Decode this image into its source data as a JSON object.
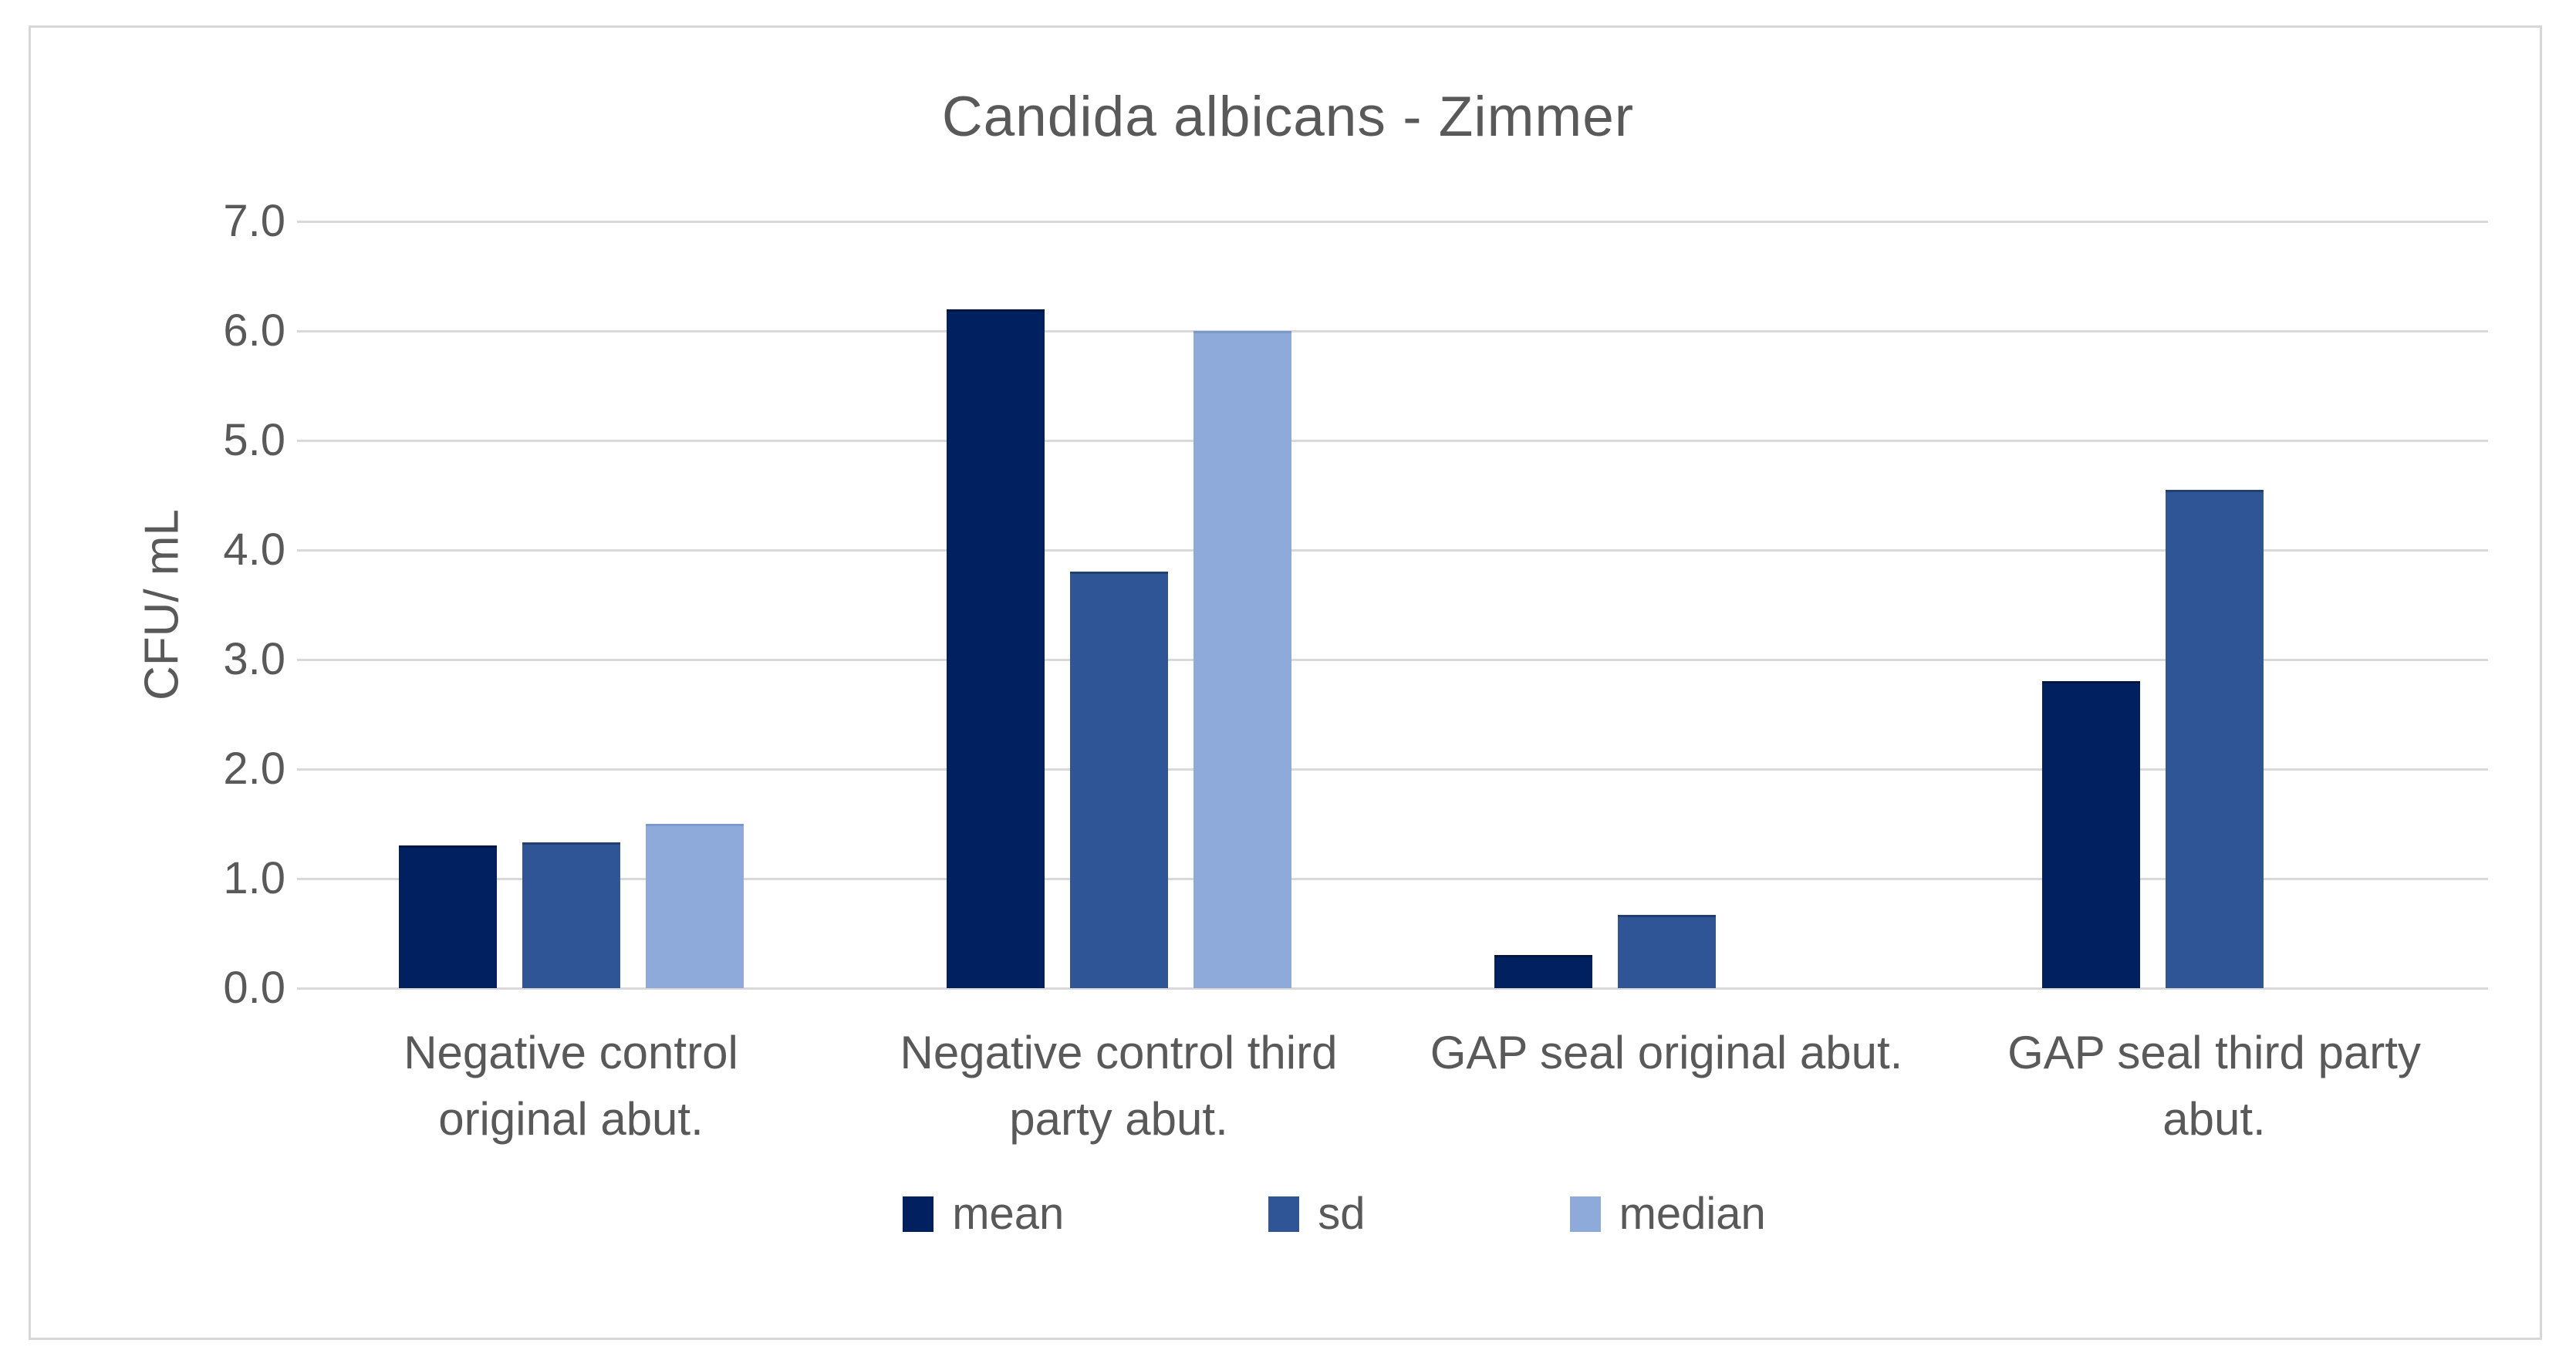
{
  "chart_data": {
    "type": "bar",
    "title": "Candida albicans - Zimmer",
    "ylabel": "CFU/ mL",
    "xlabel": "",
    "ylim": [
      0,
      7
    ],
    "ytick_values": [
      0,
      1,
      2,
      3,
      4,
      5,
      6,
      7
    ],
    "ytick_labels": [
      "0.0",
      "1.0",
      "2.0",
      "3.0",
      "4.0",
      "5.0",
      "6.0",
      "7.0"
    ],
    "grid": true,
    "legend_position": "bottom",
    "categories": [
      "Negative control\noriginal abut.",
      "Negative control third\nparty abut.",
      "GAP seal original abut.",
      "GAP seal third party\nabut."
    ],
    "series": [
      {
        "name": "mean",
        "color": "#002060",
        "edge_color": "#001642",
        "values": [
          1.3,
          6.2,
          0.3,
          2.8
        ]
      },
      {
        "name": "sd",
        "color": "#2F5596",
        "edge_color": "#223F70",
        "values": [
          1.33,
          3.8,
          0.67,
          4.55
        ]
      },
      {
        "name": "median",
        "color": "#8EAADB",
        "edge_color": "#7C99CC",
        "values": [
          1.5,
          6.0,
          0,
          0
        ]
      }
    ],
    "colors": {
      "gridline": "#d9d9d9",
      "text": "#595959",
      "frame_border": "#d7d7d7",
      "background": "#ffffff"
    }
  }
}
